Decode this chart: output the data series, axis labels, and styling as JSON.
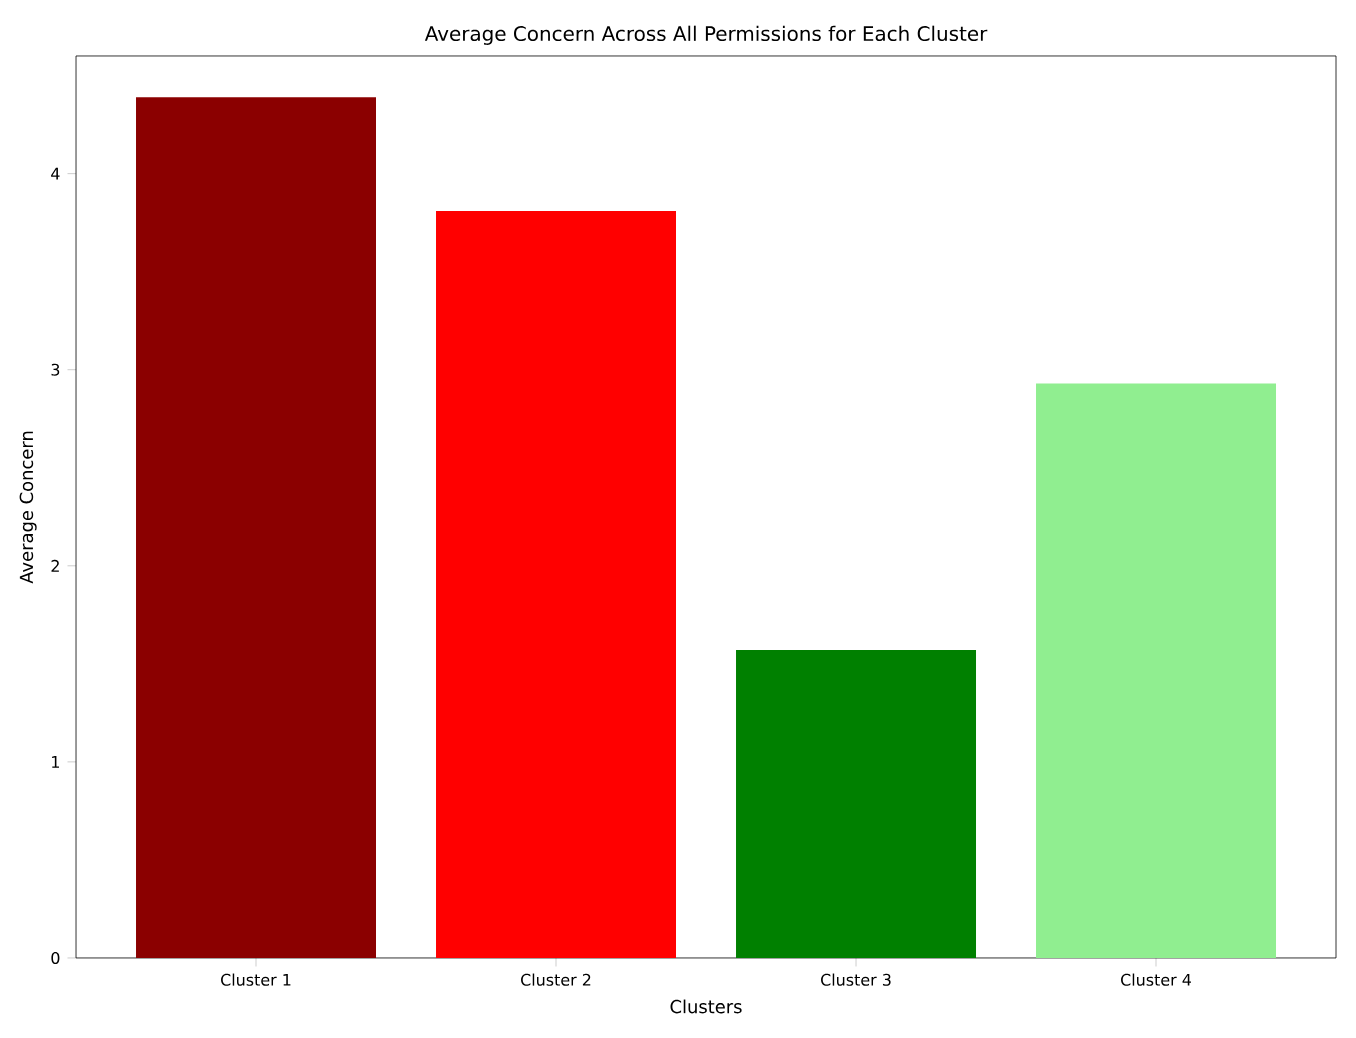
{
  "chart_data": {
    "type": "bar",
    "title": "Average Concern Across All Permissions for Each Cluster",
    "xlabel": "Clusters",
    "ylabel": "Average Concern",
    "categories": [
      "Cluster 1",
      "Cluster 2",
      "Cluster 3",
      "Cluster 4"
    ],
    "values": [
      4.39,
      3.81,
      1.57,
      2.93
    ],
    "colors": [
      "#8b0000",
      "#ff0000",
      "#008000",
      "#90ee90"
    ],
    "ylim": [
      0,
      4.6
    ],
    "yticks": [
      0,
      1,
      2,
      3,
      4
    ],
    "grid": false
  }
}
